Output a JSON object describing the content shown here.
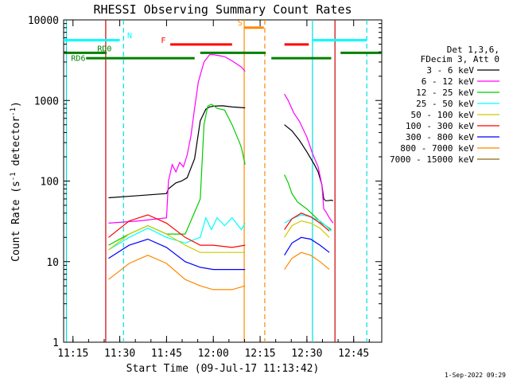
{
  "chart_data": {
    "type": "line",
    "title": "RHESSI Observing Summary Count Rates",
    "xlabel": "Start Time (09-Jul-17 11:13:42)",
    "ylabel_main": "Count Rate (s",
    "ylabel_sup1": "-1",
    "ylabel_mid": " detector",
    "ylabel_sup2": "-1",
    "ylabel_end": ")",
    "xlim": [
      11.2,
      12.9
    ],
    "ylim": [
      1,
      10000
    ],
    "yscale": "log",
    "grid": false,
    "background": "#ffffff",
    "xticks": [
      {
        "value": 11.25,
        "label": "11:15"
      },
      {
        "value": 11.5,
        "label": "11:30"
      },
      {
        "value": 11.75,
        "label": "11:45"
      },
      {
        "value": 12.0,
        "label": "12:00"
      },
      {
        "value": 12.25,
        "label": "12:15"
      },
      {
        "value": 12.5,
        "label": "12:30"
      },
      {
        "value": 12.75,
        "label": "12:45"
      }
    ],
    "yticks": [
      {
        "value": 1,
        "label": "1"
      },
      {
        "value": 10,
        "label": "10"
      },
      {
        "value": 100,
        "label": "100"
      },
      {
        "value": 1000,
        "label": "1000"
      },
      {
        "value": 10000,
        "label": "10000"
      }
    ],
    "legend_header": [
      "Det 1,3,6,",
      "FDecim 3, Att 0"
    ],
    "legend_position": "right",
    "footer": "1-Sep-2022 09:29",
    "series": [
      {
        "name": "3 - 6 keV",
        "color": "#000000",
        "x": [
          11.43,
          11.44,
          11.6,
          11.75,
          11.76,
          11.8,
          11.83,
          11.86,
          11.9,
          11.93,
          11.96,
          11.98,
          12.0,
          12.05,
          12.1,
          12.17,
          12.18,
          12.37,
          12.38,
          12.42,
          12.46,
          12.5,
          12.54,
          12.56,
          12.58,
          12.59,
          12.6,
          12.61,
          12.63,
          12.64,
          12.65
        ],
        "y": [
          null,
          62,
          66,
          70,
          80,
          95,
          100,
          110,
          190,
          560,
          780,
          830,
          850,
          860,
          830,
          810,
          null,
          null,
          500,
          420,
          320,
          230,
          160,
          130,
          90,
          60,
          57,
          57,
          58,
          57,
          null
        ]
      },
      {
        "name": "6 - 12 keV",
        "color": "#ff00ff",
        "x": [
          11.43,
          11.44,
          11.6,
          11.75,
          11.76,
          11.78,
          11.8,
          11.82,
          11.84,
          11.86,
          11.88,
          11.9,
          11.92,
          11.95,
          11.98,
          12.0,
          12.03,
          12.06,
          12.1,
          12.15,
          12.17,
          12.18,
          12.37,
          12.38,
          12.4,
          12.43,
          12.46,
          12.5,
          12.53,
          12.56,
          12.58,
          12.59,
          12.6,
          12.62,
          12.64,
          12.65
        ],
        "y": [
          null,
          30,
          32,
          35,
          100,
          160,
          130,
          170,
          150,
          210,
          360,
          800,
          1700,
          3000,
          3700,
          3700,
          3600,
          3500,
          3100,
          2600,
          2300,
          null,
          null,
          1200,
          1000,
          700,
          550,
          350,
          220,
          150,
          90,
          45,
          42,
          35,
          30,
          null
        ]
      },
      {
        "name": "12 - 25 keV",
        "color": "#00cc00",
        "x": [
          11.43,
          11.44,
          11.55,
          11.65,
          11.75,
          11.85,
          11.93,
          11.95,
          11.97,
          11.99,
          12.02,
          12.06,
          12.1,
          12.14,
          12.15,
          12.17,
          12.18,
          12.37,
          12.38,
          12.4,
          12.42,
          12.45,
          12.5,
          12.55,
          12.58,
          12.6,
          12.63,
          12.65
        ],
        "y": [
          null,
          16,
          22,
          28,
          22,
          22,
          60,
          500,
          850,
          900,
          800,
          760,
          500,
          300,
          260,
          160,
          null,
          null,
          120,
          95,
          70,
          55,
          45,
          35,
          30,
          28,
          25,
          null
        ]
      },
      {
        "name": "25 - 50 keV",
        "color": "#00ffff",
        "x": [
          11.43,
          11.44,
          11.55,
          11.65,
          11.75,
          11.85,
          11.93,
          11.96,
          11.99,
          12.02,
          12.06,
          12.1,
          12.15,
          12.17,
          12.18,
          12.37,
          12.38,
          12.42,
          12.47,
          12.52,
          12.57,
          12.6,
          12.63,
          12.65
        ],
        "y": [
          null,
          14,
          20,
          26,
          20,
          17,
          20,
          35,
          25,
          35,
          28,
          35,
          25,
          30,
          null,
          null,
          30,
          34,
          38,
          36,
          32,
          28,
          24,
          null
        ]
      },
      {
        "name": "50 - 100 keV",
        "color": "#cccc00",
        "x": [
          11.43,
          11.44,
          11.55,
          11.65,
          11.75,
          11.85,
          11.93,
          12.0,
          12.1,
          12.17,
          12.18,
          12.37,
          12.38,
          12.42,
          12.47,
          12.52,
          12.57,
          12.62,
          12.65
        ],
        "y": [
          null,
          14,
          22,
          28,
          22,
          16,
          13,
          13,
          13,
          13,
          null,
          null,
          20,
          28,
          32,
          30,
          26,
          20,
          null
        ]
      },
      {
        "name": "100 - 300 keV",
        "color": "#ff0000",
        "x": [
          11.43,
          11.44,
          11.55,
          11.65,
          11.75,
          11.85,
          11.93,
          12.0,
          12.1,
          12.17,
          12.18,
          12.37,
          12.38,
          12.42,
          12.47,
          12.52,
          12.57,
          12.62,
          12.65
        ],
        "y": [
          null,
          20,
          32,
          38,
          30,
          20,
          16,
          16,
          15,
          16,
          null,
          null,
          25,
          34,
          40,
          36,
          30,
          24,
          null
        ]
      },
      {
        "name": "300 - 800 keV",
        "color": "#0000ff",
        "x": [
          11.43,
          11.44,
          11.55,
          11.65,
          11.75,
          11.85,
          11.93,
          12.0,
          12.1,
          12.17,
          12.18,
          12.37,
          12.38,
          12.42,
          12.47,
          12.52,
          12.57,
          12.62,
          12.65
        ],
        "y": [
          null,
          11,
          16,
          19,
          15,
          10,
          8.5,
          8,
          8,
          8,
          null,
          null,
          12,
          17,
          20,
          19,
          16,
          13,
          null
        ]
      },
      {
        "name": "800 - 7000 keV",
        "color": "#ff8800",
        "x": [
          11.43,
          11.44,
          11.55,
          11.65,
          11.75,
          11.85,
          11.93,
          12.0,
          12.1,
          12.17,
          12.18,
          12.37,
          12.38,
          12.42,
          12.47,
          12.52,
          12.57,
          12.62,
          12.65
        ],
        "y": [
          null,
          6,
          9.5,
          12,
          9.5,
          6,
          5,
          4.5,
          4.5,
          5,
          null,
          null,
          8,
          11,
          13,
          12,
          10,
          8,
          null
        ]
      },
      {
        "name": "7000 - 15000 keV",
        "color": "#8b6914",
        "x": [],
        "y": []
      }
    ],
    "vertical_lines": [
      {
        "x": 11.215,
        "color": "#00e0e0",
        "style": "solid"
      },
      {
        "x": 11.52,
        "color": "#00e0e0",
        "style": "dashed"
      },
      {
        "x": 11.425,
        "color": "#cc0000",
        "style": "solid"
      },
      {
        "x": 12.65,
        "color": "#cc0000",
        "style": "solid"
      },
      {
        "x": 12.165,
        "color": "#ff8800",
        "style": "solid"
      },
      {
        "x": 12.275,
        "color": "#ff8800",
        "style": "dashed"
      },
      {
        "x": 12.53,
        "color": "#00e0e0",
        "style": "solid"
      },
      {
        "x": 12.82,
        "color": "#00e0e0",
        "style": "dashed"
      }
    ],
    "flag_bars": [
      {
        "label": "N",
        "color": "#00ffff",
        "y": 5600,
        "segments": [
          [
            11.2,
            11.5
          ],
          [
            12.53,
            12.82
          ]
        ],
        "label_x": 11.54,
        "label_y": 5900
      },
      {
        "label": "S",
        "color": "#ff8800",
        "y": 8000,
        "segments": [
          [
            12.165,
            12.27
          ]
        ],
        "label_x": 12.13,
        "label_y": 8500
      },
      {
        "label": "F",
        "color": "#ff0000",
        "y": 4950,
        "segments": [
          [
            11.77,
            12.1
          ],
          [
            12.38,
            12.51
          ]
        ],
        "label_x": 11.72,
        "label_y": 5200
      },
      {
        "label": "RD0",
        "color": "#008000",
        "y": 3900,
        "segments": [
          [
            11.2,
            11.43
          ],
          [
            11.93,
            12.28
          ],
          [
            12.68,
            12.9
          ]
        ],
        "label_x": 11.38,
        "label_y": 4050
      },
      {
        "label": "RD6",
        "color": "#008000",
        "y": 3350,
        "segments": [
          [
            11.32,
            11.9
          ],
          [
            12.31,
            12.63
          ]
        ],
        "label_x": 11.24,
        "label_y": 3100
      }
    ]
  }
}
